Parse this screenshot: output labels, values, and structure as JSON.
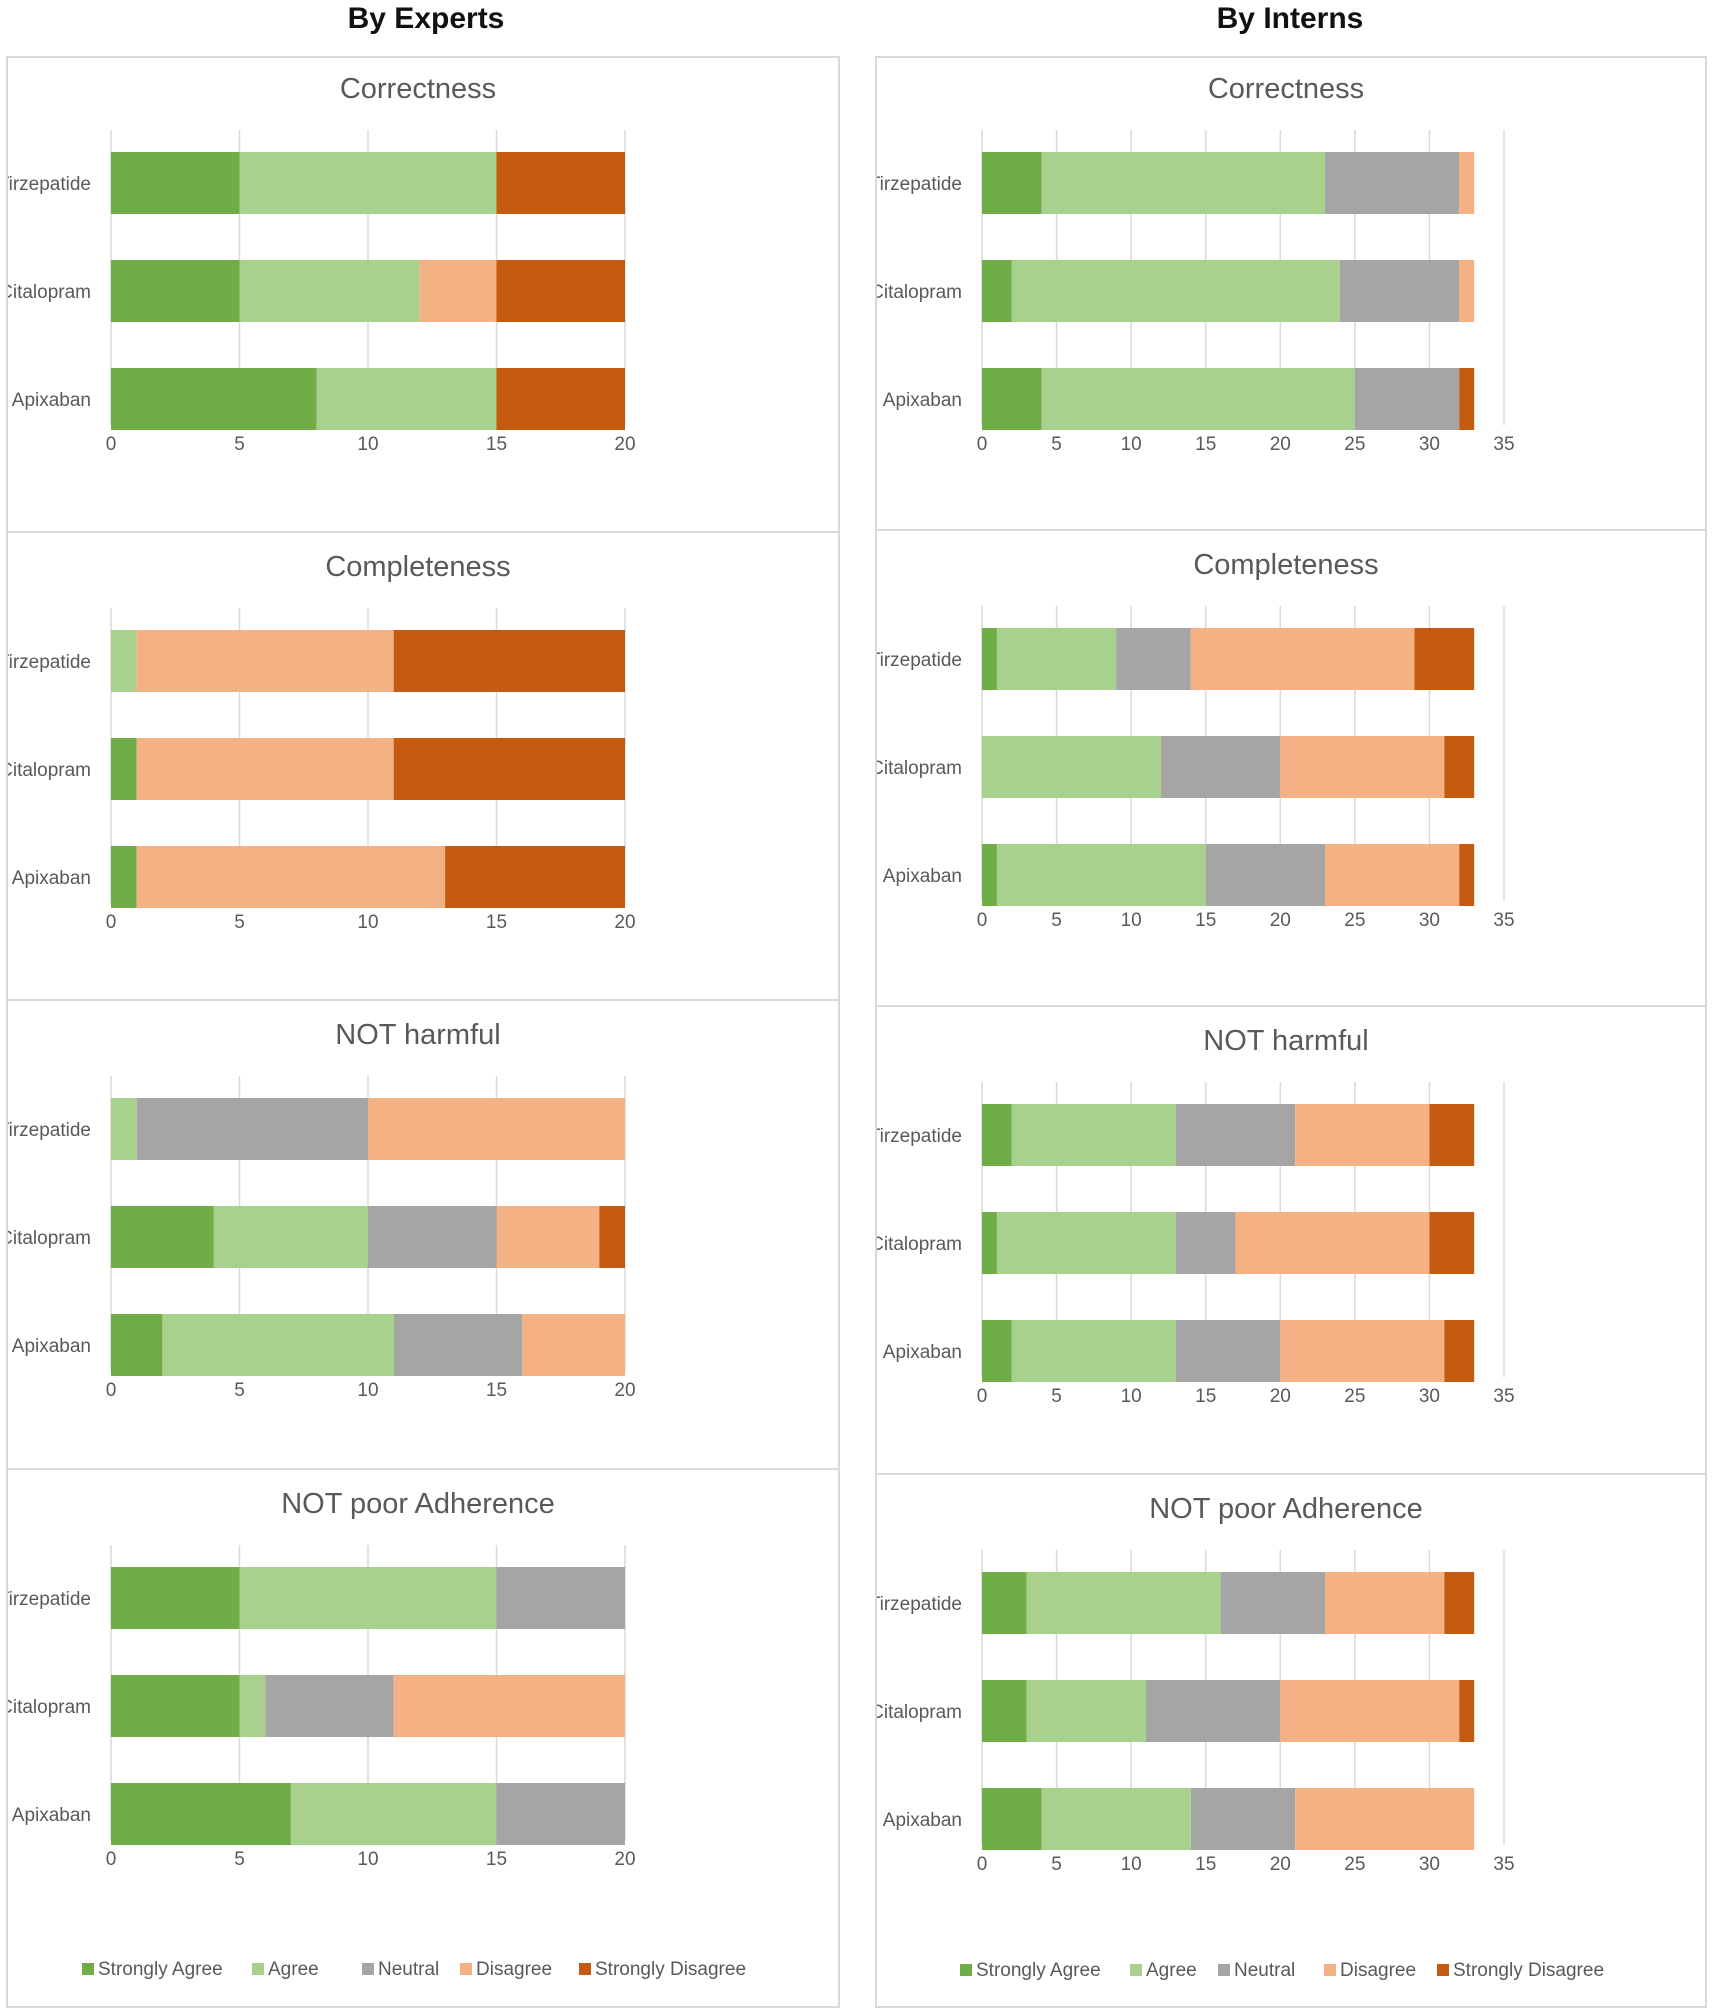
{
  "columns": [
    {
      "heading": "By Experts"
    },
    {
      "heading": "By Interns"
    }
  ],
  "legend": [
    "Strongly Agree",
    "Agree",
    "Neutral",
    "Disagree",
    "Strongly Disagree"
  ],
  "colors": [
    "#70ad47",
    "#a9d18e",
    "#a5a5a5",
    "#f4b183",
    "#c55a11"
  ],
  "chart_data": [
    {
      "type": "bar",
      "stacked": true,
      "orientation": "horizontal",
      "group": "By Experts",
      "title": "Correctness",
      "categories": [
        "Tirzepatide",
        "Citalopram",
        "Apixaban"
      ],
      "xlim": [
        0,
        20
      ],
      "ticks": [
        0,
        5,
        10,
        15,
        20
      ],
      "series": [
        {
          "name": "Strongly Agree",
          "values": [
            5,
            5,
            8
          ]
        },
        {
          "name": "Agree",
          "values": [
            10,
            7,
            7
          ]
        },
        {
          "name": "Neutral",
          "values": [
            0,
            0,
            0
          ]
        },
        {
          "name": "Disagree",
          "values": [
            0,
            3,
            0
          ]
        },
        {
          "name": "Strongly Disagree",
          "values": [
            5,
            5,
            5
          ]
        }
      ]
    },
    {
      "type": "bar",
      "stacked": true,
      "orientation": "horizontal",
      "group": "By Experts",
      "title": "Completeness",
      "categories": [
        "Tirzepatide",
        "Citalopram",
        "Apixaban"
      ],
      "xlim": [
        0,
        20
      ],
      "ticks": [
        0,
        5,
        10,
        15,
        20
      ],
      "series": [
        {
          "name": "Strongly Agree",
          "values": [
            0,
            1,
            1
          ]
        },
        {
          "name": "Agree",
          "values": [
            1,
            0,
            0
          ]
        },
        {
          "name": "Neutral",
          "values": [
            0,
            0,
            0
          ]
        },
        {
          "name": "Disagree",
          "values": [
            10,
            10,
            12
          ]
        },
        {
          "name": "Strongly Disagree",
          "values": [
            9,
            9,
            7
          ]
        }
      ]
    },
    {
      "type": "bar",
      "stacked": true,
      "orientation": "horizontal",
      "group": "By Experts",
      "title": "NOT harmful",
      "categories": [
        "Tirzepatide",
        "Citalopram",
        "Apixaban"
      ],
      "xlim": [
        0,
        20
      ],
      "ticks": [
        0,
        5,
        10,
        15,
        20
      ],
      "series": [
        {
          "name": "Strongly Agree",
          "values": [
            0,
            4,
            2
          ]
        },
        {
          "name": "Agree",
          "values": [
            1,
            6,
            9
          ]
        },
        {
          "name": "Neutral",
          "values": [
            9,
            5,
            5
          ]
        },
        {
          "name": "Disagree",
          "values": [
            10,
            4,
            4
          ]
        },
        {
          "name": "Strongly Disagree",
          "values": [
            0,
            1,
            0
          ]
        }
      ]
    },
    {
      "type": "bar",
      "stacked": true,
      "orientation": "horizontal",
      "group": "By Experts",
      "title": "NOT poor Adherence",
      "categories": [
        "Tirzepatide",
        "Citalopram",
        "Apixaban"
      ],
      "xlim": [
        0,
        20
      ],
      "ticks": [
        0,
        5,
        10,
        15,
        20
      ],
      "series": [
        {
          "name": "Strongly Agree",
          "values": [
            5,
            5,
            7
          ]
        },
        {
          "name": "Agree",
          "values": [
            10,
            1,
            8
          ]
        },
        {
          "name": "Neutral",
          "values": [
            5,
            5,
            5
          ]
        },
        {
          "name": "Disagree",
          "values": [
            0,
            9,
            0
          ]
        },
        {
          "name": "Strongly Disagree",
          "values": [
            0,
            0,
            0
          ]
        }
      ]
    },
    {
      "type": "bar",
      "stacked": true,
      "orientation": "horizontal",
      "group": "By Interns",
      "title": "Correctness",
      "categories": [
        "Tirzepatide",
        "Citalopram",
        "Apixaban"
      ],
      "xlim": [
        0,
        35
      ],
      "ticks": [
        0,
        5,
        10,
        15,
        20,
        25,
        30,
        35
      ],
      "series": [
        {
          "name": "Strongly Agree",
          "values": [
            4,
            2,
            4
          ]
        },
        {
          "name": "Agree",
          "values": [
            19,
            22,
            21
          ]
        },
        {
          "name": "Neutral",
          "values": [
            9,
            8,
            7
          ]
        },
        {
          "name": "Disagree",
          "values": [
            1,
            1,
            0
          ]
        },
        {
          "name": "Strongly Disagree",
          "values": [
            0,
            0,
            1
          ]
        }
      ]
    },
    {
      "type": "bar",
      "stacked": true,
      "orientation": "horizontal",
      "group": "By Interns",
      "title": "Completeness",
      "categories": [
        "Tirzepatide",
        "Citalopram",
        "Apixaban"
      ],
      "xlim": [
        0,
        35
      ],
      "ticks": [
        0,
        5,
        10,
        15,
        20,
        25,
        30,
        35
      ],
      "series": [
        {
          "name": "Strongly Agree",
          "values": [
            1,
            0,
            1
          ]
        },
        {
          "name": "Agree",
          "values": [
            8,
            12,
            14
          ]
        },
        {
          "name": "Neutral",
          "values": [
            5,
            8,
            8
          ]
        },
        {
          "name": "Disagree",
          "values": [
            15,
            11,
            9
          ]
        },
        {
          "name": "Strongly Disagree",
          "values": [
            4,
            2,
            1
          ]
        }
      ]
    },
    {
      "type": "bar",
      "stacked": true,
      "orientation": "horizontal",
      "group": "By Interns",
      "title": "NOT harmful",
      "categories": [
        "Tirzepatide",
        "Citalopram",
        "Apixaban"
      ],
      "xlim": [
        0,
        35
      ],
      "ticks": [
        0,
        5,
        10,
        15,
        20,
        25,
        30,
        35
      ],
      "series": [
        {
          "name": "Strongly Agree",
          "values": [
            2,
            1,
            2
          ]
        },
        {
          "name": "Agree",
          "values": [
            11,
            12,
            11
          ]
        },
        {
          "name": "Neutral",
          "values": [
            8,
            4,
            7
          ]
        },
        {
          "name": "Disagree",
          "values": [
            9,
            13,
            11
          ]
        },
        {
          "name": "Strongly Disagree",
          "values": [
            3,
            3,
            2
          ]
        }
      ]
    },
    {
      "type": "bar",
      "stacked": true,
      "orientation": "horizontal",
      "group": "By Interns",
      "title": "NOT poor Adherence",
      "categories": [
        "Tirzepatide",
        "Citalopram",
        "Apixaban"
      ],
      "xlim": [
        0,
        35
      ],
      "ticks": [
        0,
        5,
        10,
        15,
        20,
        25,
        30,
        35
      ],
      "series": [
        {
          "name": "Strongly Agree",
          "values": [
            3,
            3,
            4
          ]
        },
        {
          "name": "Agree",
          "values": [
            13,
            8,
            10
          ]
        },
        {
          "name": "Neutral",
          "values": [
            7,
            9,
            7
          ]
        },
        {
          "name": "Disagree",
          "values": [
            8,
            12,
            12
          ]
        },
        {
          "name": "Strongly Disagree",
          "values": [
            2,
            1,
            0
          ]
        }
      ]
    }
  ]
}
